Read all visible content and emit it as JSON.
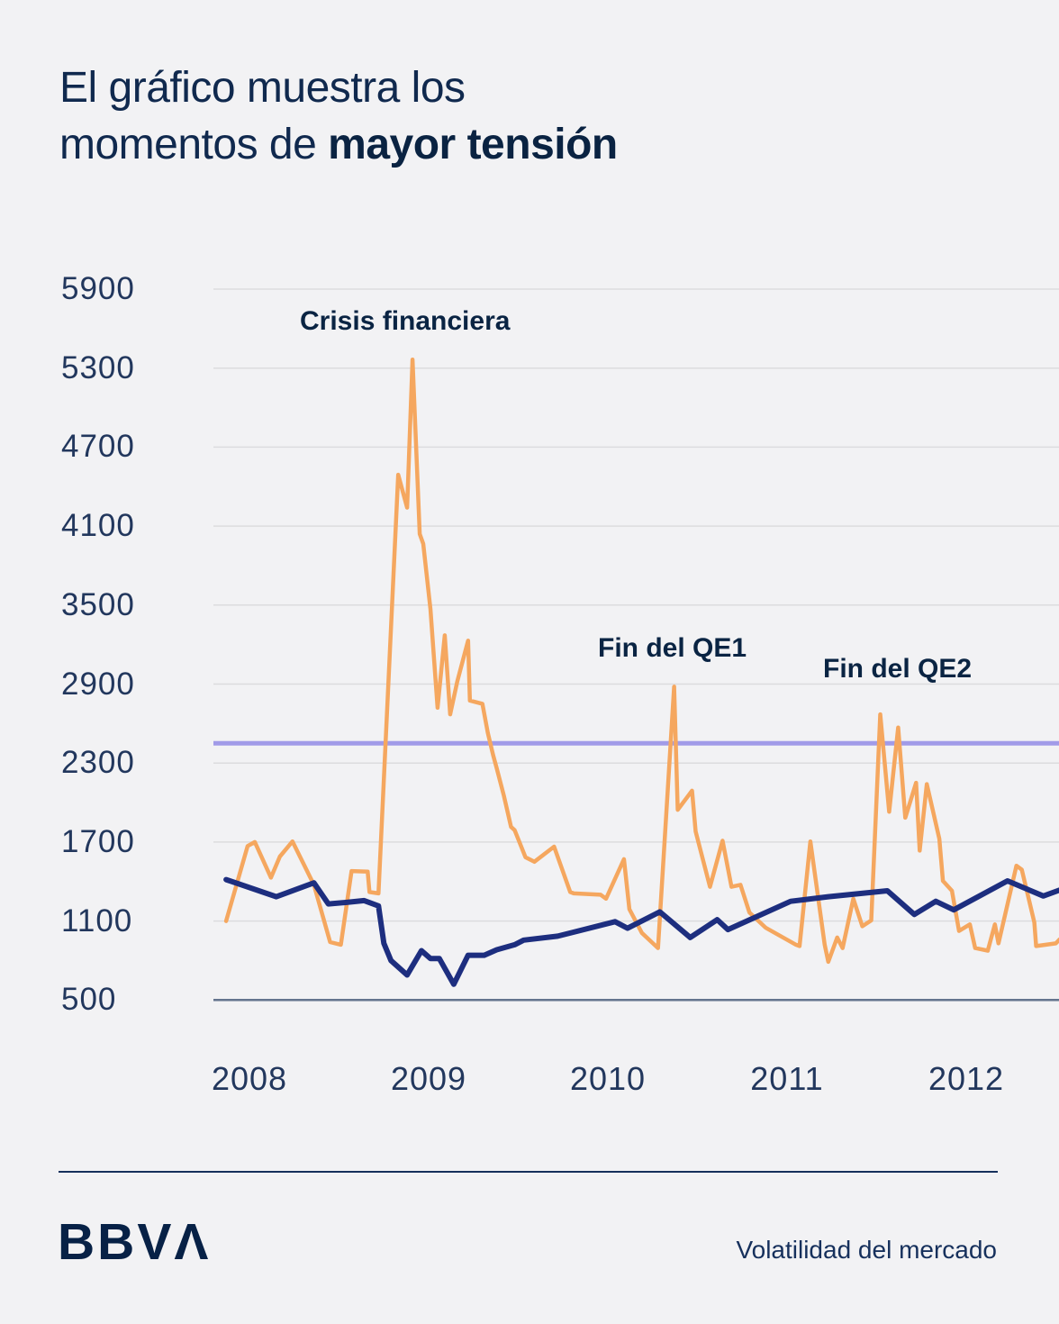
{
  "title": {
    "line1": "El gráfico muestra los",
    "line2_regular": "momentos de ",
    "line2_bold": "mayor tensión"
  },
  "chart_data": {
    "type": "line",
    "title": "El gráfico muestra los momentos de mayor tensión",
    "xlabel": "",
    "ylabel": "",
    "x_ticks": [
      "2008",
      "2009",
      "2010",
      "2011",
      "2012"
    ],
    "y_ticks": [
      "5900",
      "5300",
      "4700",
      "4100",
      "3500",
      "2900",
      "2300",
      "1700",
      "1100",
      "500"
    ],
    "ylim": [
      500,
      5900
    ],
    "xlim_years": [
      2007.87,
      2012.52
    ],
    "grid": "horizontal",
    "legend": "none",
    "annotations": [
      {
        "text": "Crisis financiera",
        "anchor_year": 2008.9
      },
      {
        "text": "Fin del QE1",
        "anchor_year": 2010.37
      },
      {
        "text": "Fin del QE2",
        "anchor_year": 2011.52
      }
    ],
    "ref_line": {
      "value": 2450,
      "color": "#a19be8"
    },
    "colors": {
      "grid": "#dcdcde",
      "baseline": "#64748e"
    },
    "series": [
      {
        "id": "market-volatility-orange",
        "color": "#f5a75f",
        "width": 4.5,
        "points": [
          [
            2007.87,
            1100
          ],
          [
            2007.99,
            1670
          ],
          [
            2008.03,
            1700
          ],
          [
            2008.12,
            1430
          ],
          [
            2008.17,
            1590
          ],
          [
            2008.24,
            1705
          ],
          [
            2008.36,
            1375
          ],
          [
            2008.45,
            940
          ],
          [
            2008.51,
            920
          ],
          [
            2008.57,
            1480
          ],
          [
            2008.66,
            1475
          ],
          [
            2008.67,
            1320
          ],
          [
            2008.72,
            1310
          ],
          [
            2008.83,
            4490
          ],
          [
            2008.88,
            4240
          ],
          [
            2008.91,
            5365
          ],
          [
            2008.95,
            4040
          ],
          [
            2008.97,
            3965
          ],
          [
            2009.01,
            3470
          ],
          [
            2009.05,
            2720
          ],
          [
            2009.09,
            3270
          ],
          [
            2009.12,
            2670
          ],
          [
            2009.16,
            2920
          ],
          [
            2009.22,
            3230
          ],
          [
            2009.23,
            2775
          ],
          [
            2009.3,
            2750
          ],
          [
            2009.33,
            2530
          ],
          [
            2009.36,
            2360
          ],
          [
            2009.38,
            2260
          ],
          [
            2009.42,
            2050
          ],
          [
            2009.46,
            1815
          ],
          [
            2009.48,
            1790
          ],
          [
            2009.54,
            1585
          ],
          [
            2009.59,
            1550
          ],
          [
            2009.7,
            1665
          ],
          [
            2009.79,
            1320
          ],
          [
            2009.81,
            1310
          ],
          [
            2009.96,
            1300
          ],
          [
            2009.99,
            1270
          ],
          [
            2010.09,
            1570
          ],
          [
            2010.12,
            1190
          ],
          [
            2010.19,
            1010
          ],
          [
            2010.28,
            895
          ],
          [
            2010.37,
            2880
          ],
          [
            2010.39,
            1945
          ],
          [
            2010.47,
            2090
          ],
          [
            2010.49,
            1780
          ],
          [
            2010.57,
            1360
          ],
          [
            2010.64,
            1710
          ],
          [
            2010.69,
            1360
          ],
          [
            2010.74,
            1375
          ],
          [
            2010.79,
            1165
          ],
          [
            2010.88,
            1050
          ],
          [
            2011.05,
            920
          ],
          [
            2011.07,
            910
          ],
          [
            2011.13,
            1705
          ],
          [
            2011.21,
            920
          ],
          [
            2011.23,
            790
          ],
          [
            2011.28,
            975
          ],
          [
            2011.31,
            895
          ],
          [
            2011.37,
            1270
          ],
          [
            2011.42,
            1060
          ],
          [
            2011.47,
            1105
          ],
          [
            2011.52,
            2670
          ],
          [
            2011.57,
            1930
          ],
          [
            2011.62,
            2570
          ],
          [
            2011.66,
            1885
          ],
          [
            2011.72,
            2150
          ],
          [
            2011.74,
            1635
          ],
          [
            2011.78,
            2140
          ],
          [
            2011.85,
            1725
          ],
          [
            2011.87,
            1405
          ],
          [
            2011.92,
            1330
          ],
          [
            2011.96,
            1025
          ],
          [
            2012.02,
            1075
          ],
          [
            2012.05,
            895
          ],
          [
            2012.12,
            875
          ],
          [
            2012.16,
            1075
          ],
          [
            2012.18,
            930
          ],
          [
            2012.28,
            1520
          ],
          [
            2012.31,
            1490
          ],
          [
            2012.38,
            1090
          ],
          [
            2012.39,
            910
          ],
          [
            2012.5,
            930
          ],
          [
            2012.52,
            960
          ]
        ]
      },
      {
        "id": "market-index-navy",
        "color": "#1d2e7f",
        "width": 6,
        "points": [
          [
            2007.87,
            1415
          ],
          [
            2008.15,
            1285
          ],
          [
            2008.36,
            1390
          ],
          [
            2008.44,
            1230
          ],
          [
            2008.53,
            1240
          ],
          [
            2008.64,
            1255
          ],
          [
            2008.72,
            1215
          ],
          [
            2008.75,
            930
          ],
          [
            2008.79,
            800
          ],
          [
            2008.88,
            690
          ],
          [
            2008.96,
            875
          ],
          [
            2009.01,
            815
          ],
          [
            2009.06,
            815
          ],
          [
            2009.14,
            620
          ],
          [
            2009.22,
            840
          ],
          [
            2009.31,
            840
          ],
          [
            2009.38,
            882
          ],
          [
            2009.48,
            920
          ],
          [
            2009.53,
            955
          ],
          [
            2009.72,
            985
          ],
          [
            2010.04,
            1095
          ],
          [
            2010.11,
            1045
          ],
          [
            2010.29,
            1170
          ],
          [
            2010.46,
            975
          ],
          [
            2010.61,
            1110
          ],
          [
            2010.67,
            1035
          ],
          [
            2011.02,
            1250
          ],
          [
            2011.23,
            1285
          ],
          [
            2011.56,
            1330
          ],
          [
            2011.71,
            1150
          ],
          [
            2011.83,
            1250
          ],
          [
            2011.93,
            1185
          ],
          [
            2012.23,
            1405
          ],
          [
            2012.43,
            1290
          ],
          [
            2012.52,
            1335
          ]
        ]
      }
    ]
  },
  "footer": {
    "logo_text": "BBVA",
    "caption": "Volatilidad del mercado"
  }
}
